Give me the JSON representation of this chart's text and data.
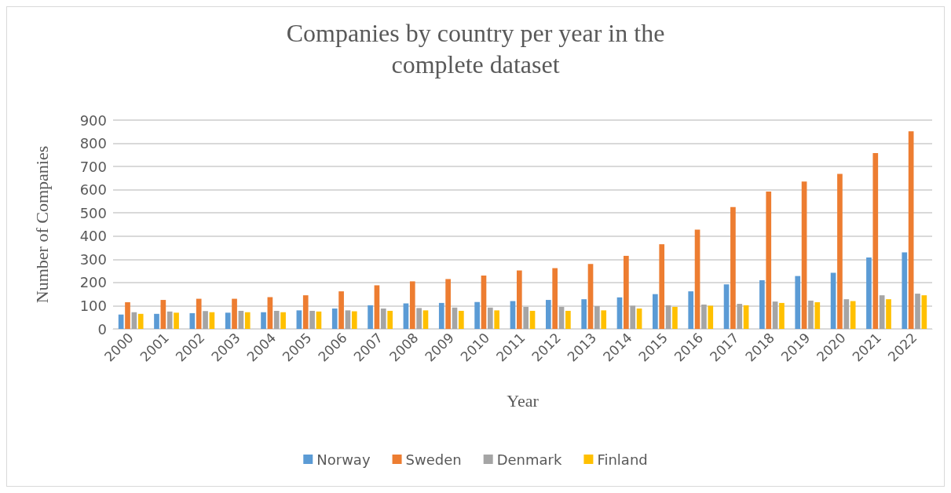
{
  "chart_data": {
    "type": "bar",
    "title": "Companies by country per year in the\ncomplete dataset",
    "xlabel": "Year",
    "ylabel": "Number of Companies",
    "categories": [
      "2000",
      "2001",
      "2002",
      "2003",
      "2004",
      "2005",
      "2006",
      "2007",
      "2008",
      "2009",
      "2010",
      "2011",
      "2012",
      "2013",
      "2014",
      "2015",
      "2016",
      "2017",
      "2018",
      "2019",
      "2020",
      "2021",
      "2022"
    ],
    "series": [
      {
        "name": "Norway",
        "color": "#5b9bd5",
        "values": [
          62,
          65,
          68,
          70,
          72,
          80,
          88,
          102,
          110,
          112,
          116,
          120,
          125,
          128,
          136,
          150,
          162,
          192,
          210,
          228,
          242,
          308,
          330
        ]
      },
      {
        "name": "Sweden",
        "color": "#ed7d31",
        "values": [
          115,
          125,
          130,
          130,
          137,
          145,
          162,
          188,
          205,
          215,
          230,
          252,
          262,
          280,
          315,
          365,
          428,
          525,
          592,
          635,
          668,
          758,
          852
        ]
      },
      {
        "name": "Denmark",
        "color": "#a5a5a5",
        "values": [
          72,
          75,
          77,
          78,
          78,
          78,
          80,
          88,
          90,
          92,
          92,
          95,
          95,
          98,
          100,
          102,
          105,
          108,
          118,
          122,
          128,
          145,
          152
        ]
      },
      {
        "name": "Finland",
        "color": "#ffc000",
        "values": [
          65,
          70,
          72,
          72,
          72,
          75,
          76,
          78,
          80,
          78,
          80,
          78,
          78,
          80,
          88,
          95,
          100,
          102,
          112,
          115,
          120,
          128,
          145
        ]
      }
    ],
    "ylim": [
      0,
      900
    ],
    "yticks": [
      0,
      100,
      200,
      300,
      400,
      500,
      600,
      700,
      800,
      900
    ],
    "grid": "y",
    "legend": "bottom"
  }
}
